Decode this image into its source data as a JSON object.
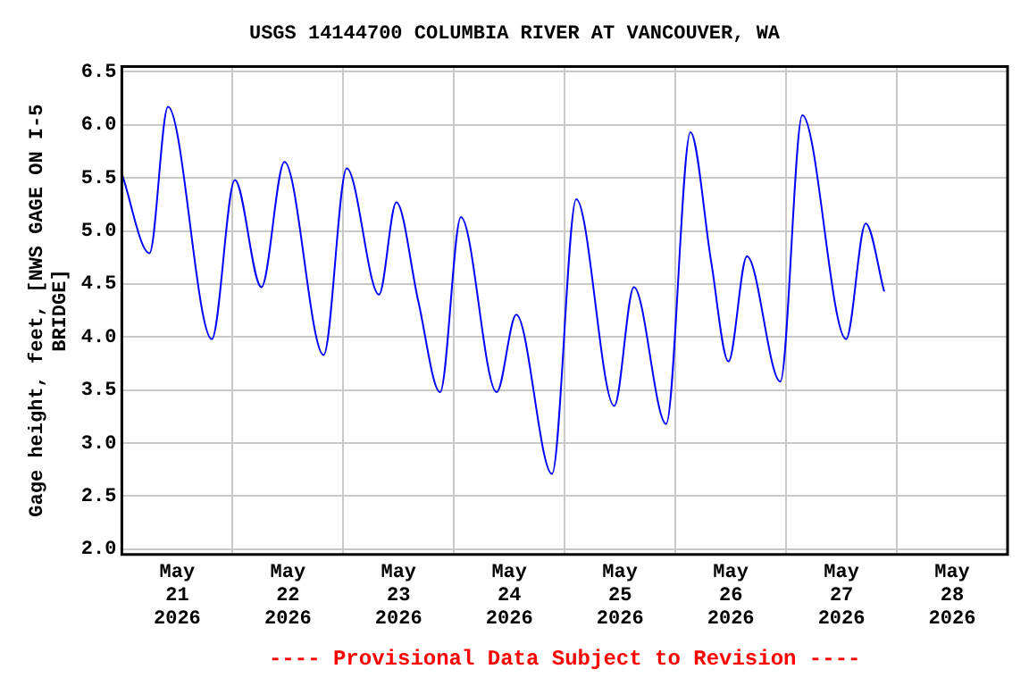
{
  "chart_data": {
    "type": "line",
    "title": "USGS 14144700 COLUMBIA RIVER AT VANCOUVER, WA",
    "ylabel": "Gage height, feet, [NWS GAGE ON I-5 BRIDGE]",
    "annotations": [
      "---- Provisional Data Subject to Revision ----"
    ],
    "x": [
      "2026-05-21T00:00",
      "2026-05-21T06:00",
      "2026-05-21T10:00",
      "2026-05-21T19:30",
      "2026-05-22T00:30",
      "2026-05-22T06:15",
      "2026-05-22T11:15",
      "2026-05-22T19:45",
      "2026-05-23T00:45",
      "2026-05-23T07:45",
      "2026-05-23T11:30",
      "2026-05-23T16:15",
      "2026-05-23T21:00",
      "2026-05-24T01:30",
      "2026-05-24T09:15",
      "2026-05-24T13:30",
      "2026-05-24T21:15",
      "2026-05-25T02:30",
      "2026-05-25T10:45",
      "2026-05-25T15:00",
      "2026-05-25T22:00",
      "2026-05-26T03:15",
      "2026-05-26T07:45",
      "2026-05-26T11:30",
      "2026-05-26T15:30",
      "2026-05-26T22:45",
      "2026-05-27T03:30",
      "2026-05-27T13:00",
      "2026-05-27T17:15",
      "2026-05-27T21:15"
    ],
    "series": [
      {
        "color": "#0000ff",
        "values": [
          5.54,
          4.79,
          6.17,
          3.98,
          5.48,
          4.47,
          5.65,
          3.83,
          5.59,
          4.4,
          5.27,
          4.34,
          3.48,
          5.13,
          3.48,
          4.21,
          2.71,
          5.3,
          3.35,
          4.47,
          3.18,
          5.93,
          4.71,
          3.77,
          4.76,
          3.58,
          6.09,
          3.98,
          5.07,
          4.43
        ]
      }
    ],
    "xlim": [
      "2026-05-21T00:00",
      "2026-05-29T00:00"
    ],
    "xticks": [
      {
        "value": "2026-05-21T12:00",
        "label": "May\n21\n2026"
      },
      {
        "value": "2026-05-22T00:00",
        "label": null
      },
      {
        "value": "2026-05-22T12:00",
        "label": "May\n22\n2026"
      },
      {
        "value": "2026-05-23T00:00",
        "label": null
      },
      {
        "value": "2026-05-23T12:00",
        "label": "May\n23\n2026"
      },
      {
        "value": "2026-05-24T00:00",
        "label": null
      },
      {
        "value": "2026-05-24T12:00",
        "label": "May\n24\n2026"
      },
      {
        "value": "2026-05-25T00:00",
        "label": null
      },
      {
        "value": "2026-05-25T12:00",
        "label": "May\n25\n2026"
      },
      {
        "value": "2026-05-26T00:00",
        "label": null
      },
      {
        "value": "2026-05-26T12:00",
        "label": "May\n26\n2026"
      },
      {
        "value": "2026-05-27T00:00",
        "label": null
      },
      {
        "value": "2026-05-27T12:00",
        "label": "May\n27\n2026"
      },
      {
        "value": "2026-05-28T00:00",
        "label": null
      },
      {
        "value": "2026-05-28T12:00",
        "label": "May\n28\n2026"
      }
    ],
    "ylim": [
      1.95,
      6.55
    ],
    "yticks": [
      {
        "value": 2.0,
        "label": "2.0"
      },
      {
        "value": 2.5,
        "label": "2.5"
      },
      {
        "value": 3.0,
        "label": "3.0"
      },
      {
        "value": 3.5,
        "label": "3.5"
      },
      {
        "value": 4.0,
        "label": "4.0"
      },
      {
        "value": 4.5,
        "label": "4.5"
      },
      {
        "value": 5.0,
        "label": "5.0"
      },
      {
        "value": 5.5,
        "label": "5.5"
      },
      {
        "value": 6.0,
        "label": "6.0"
      },
      {
        "value": 6.5,
        "label": "6.5"
      }
    ],
    "grid": true,
    "line_style": "solid",
    "marker": "none"
  }
}
